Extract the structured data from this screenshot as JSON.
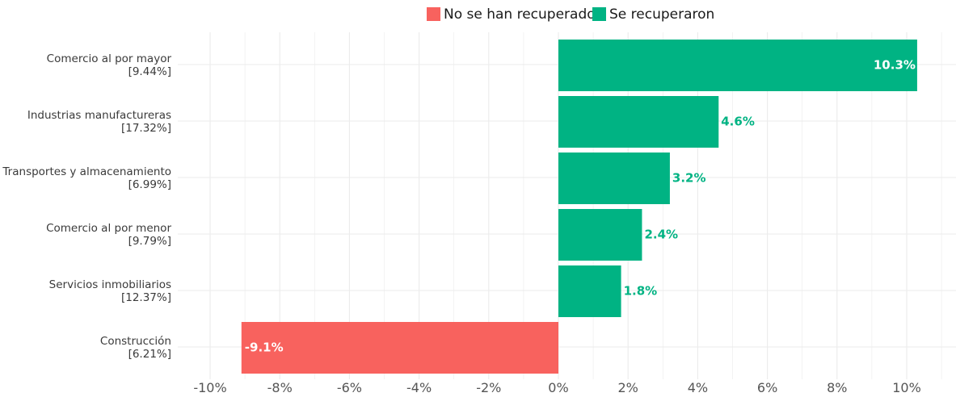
{
  "chart_data": {
    "type": "bar",
    "orientation": "horizontal",
    "legend": [
      {
        "label": "No se han recuperado",
        "color": "#F8625E"
      },
      {
        "label": "Se recuperaron",
        "color": "#00B383"
      }
    ],
    "legend_position": "top",
    "categories": [
      {
        "name": "Comercio al por mayor",
        "share": "[9.44%]"
      },
      {
        "name": "Industrias manufactureras",
        "share": "[17.32%]"
      },
      {
        "name": "Transportes y almacenamiento",
        "share": "[6.99%]"
      },
      {
        "name": "Comercio al por menor",
        "share": "[9.79%]"
      },
      {
        "name": "Servicios inmobiliarios",
        "share": "[12.37%]"
      },
      {
        "name": "Construcción",
        "share": "[6.21%]"
      }
    ],
    "values": [
      10.3,
      4.6,
      3.2,
      2.4,
      1.8,
      -9.1
    ],
    "value_labels": [
      "10.3%",
      "4.6%",
      "3.2%",
      "2.4%",
      "1.8%",
      "-9.1%"
    ],
    "xlim": [
      -10.8,
      10.8
    ],
    "x_ticks": [
      -10,
      -8,
      -6,
      -4,
      -2,
      0,
      2,
      4,
      6,
      8,
      10
    ],
    "x_tick_labels": [
      "-10%",
      "-8%",
      "-6%",
      "-4%",
      "-2%",
      "0%",
      "2%",
      "4%",
      "6%",
      "8%",
      "10%"
    ],
    "grid": true,
    "colors": {
      "negative": "#F8625E",
      "positive": "#00B383",
      "grid": "#EBEBEB"
    }
  }
}
